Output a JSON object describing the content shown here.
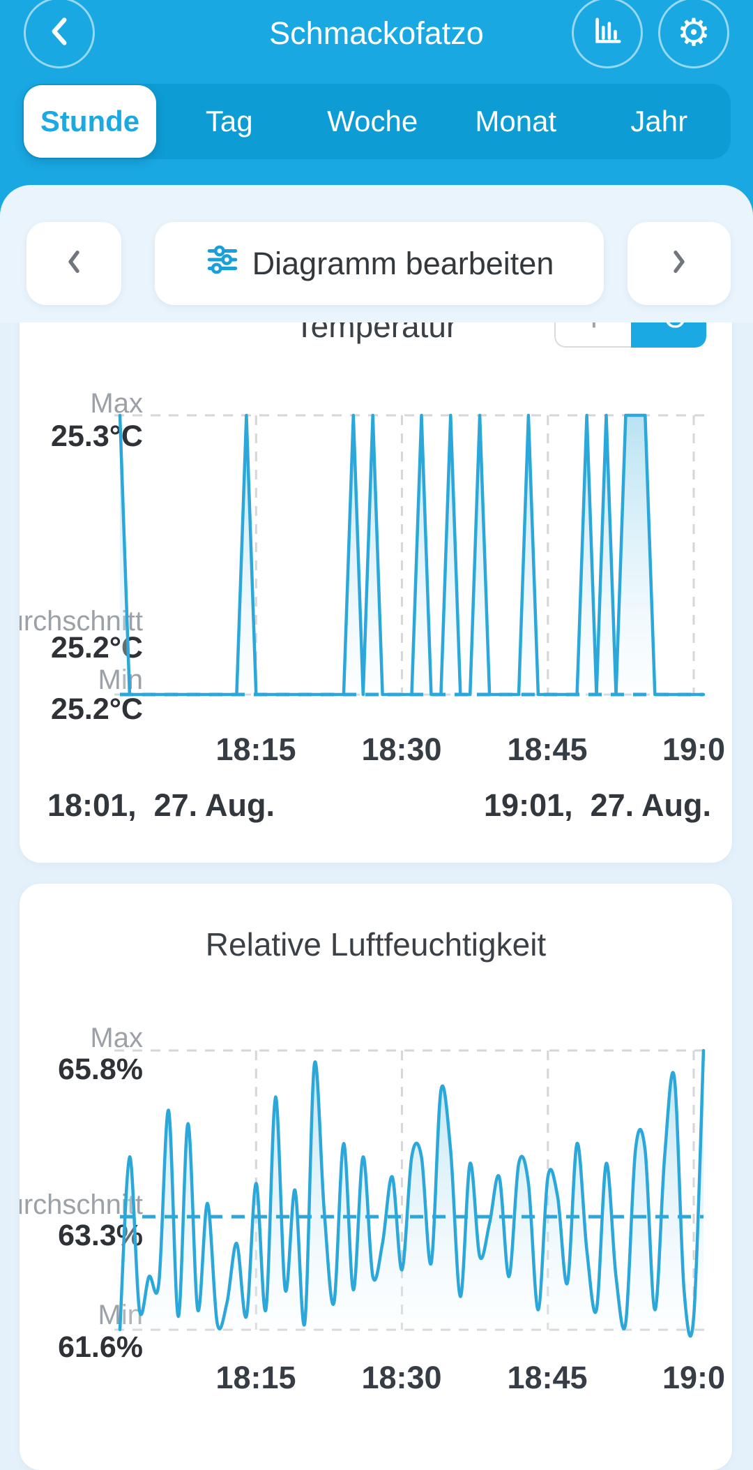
{
  "colors": {
    "accent": "#1BA9E3",
    "header": "#19A8E2",
    "tabs_bg": "#0E9CD4",
    "panel": "#EAF4FC",
    "page": "#E4F1FB",
    "line": "#2BA7D9",
    "grid": "#D4D6D8",
    "label_gray": "#9CA1A7",
    "text_dark": "#33383E"
  },
  "icons": {
    "back": "chevron-left",
    "statistics": "bar-chart",
    "settings": "gear",
    "settings_glyph": "⚙",
    "edit_chart": "sliders",
    "prev": "chevron-left",
    "next": "chevron-right"
  },
  "header": {
    "title": "Schmackofatzo"
  },
  "tabs": {
    "items": [
      {
        "label": "Stunde",
        "active": true
      },
      {
        "label": "Tag",
        "active": false
      },
      {
        "label": "Woche",
        "active": false
      },
      {
        "label": "Monat",
        "active": false
      },
      {
        "label": "Jahr",
        "active": false
      }
    ]
  },
  "toolbar": {
    "edit_chart_label": "Diagramm bearbeiten"
  },
  "charts": [
    {
      "title": "Temperatur",
      "unit_toggle": {
        "left": "°F",
        "right": "°C",
        "selected": "°C"
      },
      "stats": {
        "max_label": "Max",
        "max_value": "25.3°C",
        "avg_label": "Durchschnitt",
        "avg_value": "25.2°C",
        "min_label": "Min",
        "min_value": "25.2°C"
      },
      "x_ticks": [
        "18:15",
        "18:30",
        "18:45",
        "19:0"
      ],
      "range_start": "18:01,  27. Aug.",
      "range_end": "19:01,  27. Aug."
    },
    {
      "title": "Relative Luftfeuchtigkeit",
      "stats": {
        "max_label": "Max",
        "max_value": "65.8%",
        "avg_label": "Durchschnitt",
        "avg_value": "63.3%",
        "min_label": "Min",
        "min_value": "61.6%"
      },
      "x_ticks": [
        "18:15",
        "18:30",
        "18:45",
        "19:0"
      ]
    }
  ],
  "chart_data": [
    {
      "type": "line",
      "title": "Temperatur",
      "unit": "°C",
      "x_start": "18:01",
      "x_end": "19:01",
      "x_step_minutes": 1,
      "x_tick_minutes": [
        15,
        30,
        45,
        60
      ],
      "x_tick_labels": [
        "18:15",
        "18:30",
        "18:45",
        "19:0"
      ],
      "ylim": [
        25.2,
        25.3
      ],
      "max": 25.3,
      "min": 25.2,
      "avg": 25.2,
      "grid": true,
      "legend": false,
      "smooth": false,
      "values": [
        25.3,
        25.2,
        25.2,
        25.2,
        25.2,
        25.2,
        25.2,
        25.2,
        25.2,
        25.2,
        25.2,
        25.2,
        25.2,
        25.3,
        25.2,
        25.2,
        25.2,
        25.2,
        25.2,
        25.2,
        25.2,
        25.2,
        25.2,
        25.2,
        25.3,
        25.2,
        25.3,
        25.2,
        25.2,
        25.2,
        25.2,
        25.3,
        25.2,
        25.2,
        25.3,
        25.2,
        25.2,
        25.3,
        25.2,
        25.2,
        25.2,
        25.2,
        25.3,
        25.2,
        25.2,
        25.2,
        25.2,
        25.2,
        25.3,
        25.2,
        25.3,
        25.2,
        25.3,
        25.3,
        25.3,
        25.2,
        25.2,
        25.2,
        25.2,
        25.2,
        25.2
      ]
    },
    {
      "type": "line",
      "title": "Relative Luftfeuchtigkeit",
      "unit": "%",
      "x_start": "18:01",
      "x_end": "19:01",
      "x_step_minutes": 1,
      "x_tick_minutes": [
        15,
        30,
        45,
        60
      ],
      "x_tick_labels": [
        "18:15",
        "18:30",
        "18:45",
        "19:0"
      ],
      "ylim": [
        61.6,
        65.8
      ],
      "max": 65.8,
      "min": 61.6,
      "avg": 63.3,
      "grid": true,
      "legend": false,
      "smooth": true,
      "values": [
        61.6,
        64.2,
        61.9,
        62.4,
        62.3,
        64.9,
        61.8,
        64.7,
        61.9,
        63.5,
        61.7,
        62.0,
        62.9,
        61.8,
        63.8,
        61.9,
        65.1,
        62.2,
        63.7,
        61.7,
        65.6,
        63.4,
        62.0,
        64.4,
        62.2,
        64.2,
        62.4,
        62.9,
        63.9,
        62.5,
        64.2,
        64.2,
        62.6,
        65.2,
        64.3,
        62.1,
        64.1,
        62.7,
        63.2,
        63.9,
        62.4,
        64.1,
        63.8,
        61.9,
        63.9,
        63.6,
        62.3,
        64.4,
        62.8,
        61.9,
        64.1,
        62.4,
        61.7,
        64.3,
        64.3,
        61.9,
        64.2,
        65.4,
        62.2,
        61.8,
        65.8
      ]
    }
  ]
}
